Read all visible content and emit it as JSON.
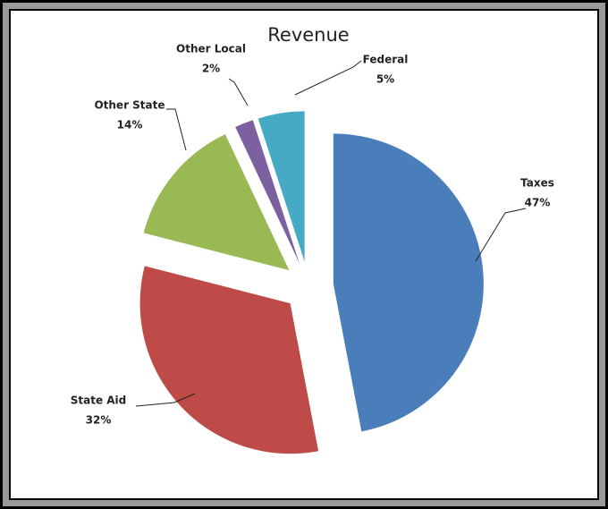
{
  "chart_data": {
    "type": "pie",
    "title": "Revenue",
    "categories": [
      "Taxes",
      "State Aid",
      "Other State",
      "Other Local",
      "Federal"
    ],
    "values": [
      47,
      32,
      14,
      2,
      5
    ],
    "value_labels": [
      "47%",
      "32%",
      "14%",
      "2%",
      "5%"
    ],
    "colors": [
      "#4a7ebb",
      "#be4b48",
      "#98b954",
      "#7d60a0",
      "#46aac5"
    ]
  }
}
